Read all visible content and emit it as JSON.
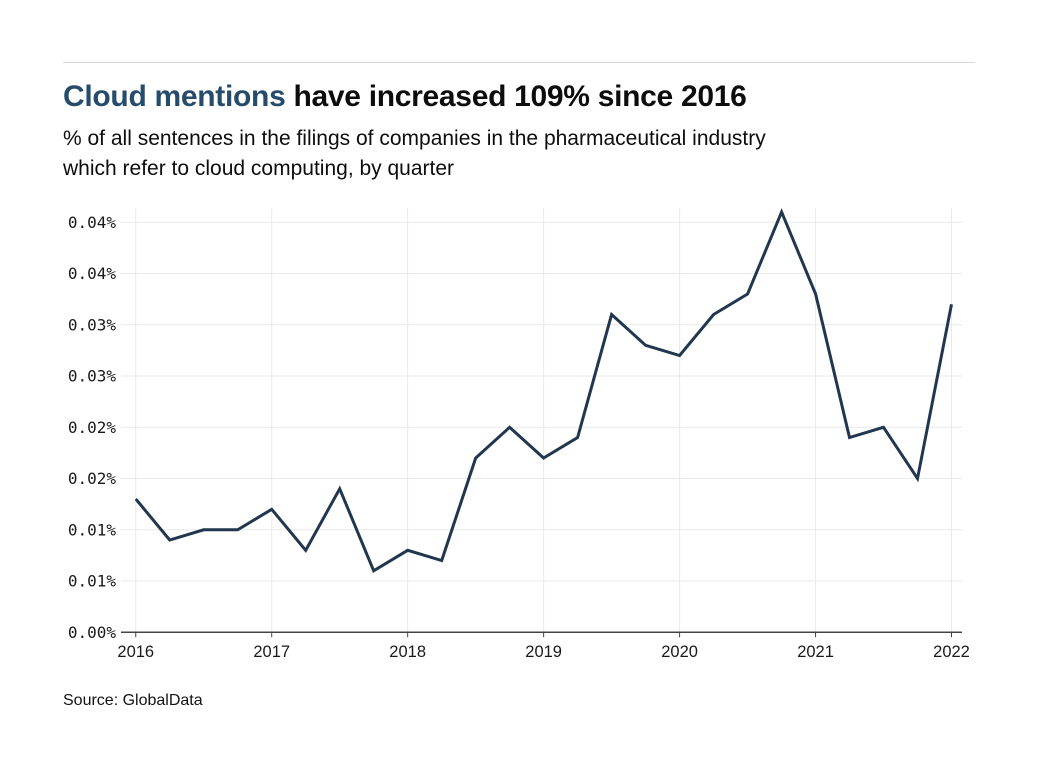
{
  "header": {
    "title_highlight": "Cloud mentions",
    "title_rest": " have increased 109% since 2016",
    "subtitle_line1": "% of all sentences in the filings of companies in the pharmaceutical industry",
    "subtitle_line2": "which refer to cloud computing, by quarter"
  },
  "footer": {
    "source": "Source: GlobalData"
  },
  "colors": {
    "title_accent": "#274b6b",
    "text": "#0d0d0d",
    "line": "#213750",
    "grid": "#e9e9e9",
    "axis": "#444444",
    "tick_label": "#1a1a1a",
    "top_rule": "#d8d8d8",
    "background": "#ffffff"
  },
  "chart_data": {
    "type": "line",
    "title": "Cloud mentions have increased 109% since 2016",
    "subtitle": "% of all sentences in the filings of companies in the pharmaceutical industry which refer to cloud computing, by quarter",
    "unit": "% of all sentences",
    "x_quarters": [
      "2016 Q1",
      "2016 Q2",
      "2016 Q3",
      "2016 Q4",
      "2017 Q1",
      "2017 Q2",
      "2017 Q3",
      "2017 Q4",
      "2018 Q1",
      "2018 Q2",
      "2018 Q3",
      "2018 Q4",
      "2019 Q1",
      "2019 Q2",
      "2019 Q3",
      "2019 Q4",
      "2020 Q1",
      "2020 Q2",
      "2020 Q3",
      "2020 Q4",
      "2021 Q1",
      "2021 Q2",
      "2021 Q3",
      "2021 Q4",
      "2022 Q1"
    ],
    "values": [
      0.013,
      0.009,
      0.01,
      0.01,
      0.012,
      0.008,
      0.014,
      0.006,
      0.008,
      0.007,
      0.017,
      0.02,
      0.017,
      0.019,
      0.031,
      0.028,
      0.027,
      0.031,
      0.033,
      0.041,
      0.033,
      0.019,
      0.02,
      0.015,
      0.032
    ],
    "x_tick_labels": [
      "2016",
      "2017",
      "2018",
      "2019",
      "2020",
      "2021",
      "2022"
    ],
    "y_ticks": [
      {
        "value": 0.0,
        "label": "0.00%"
      },
      {
        "value": 0.005,
        "label": "0.01%"
      },
      {
        "value": 0.01,
        "label": "0.01%"
      },
      {
        "value": 0.015,
        "label": "0.02%"
      },
      {
        "value": 0.02,
        "label": "0.02%"
      },
      {
        "value": 0.025,
        "label": "0.03%"
      },
      {
        "value": 0.03,
        "label": "0.03%"
      },
      {
        "value": 0.035,
        "label": "0.04%"
      },
      {
        "value": 0.04,
        "label": "0.04%"
      }
    ],
    "ylim": [
      0,
      0.0414
    ],
    "grid": true,
    "legend": "none"
  }
}
